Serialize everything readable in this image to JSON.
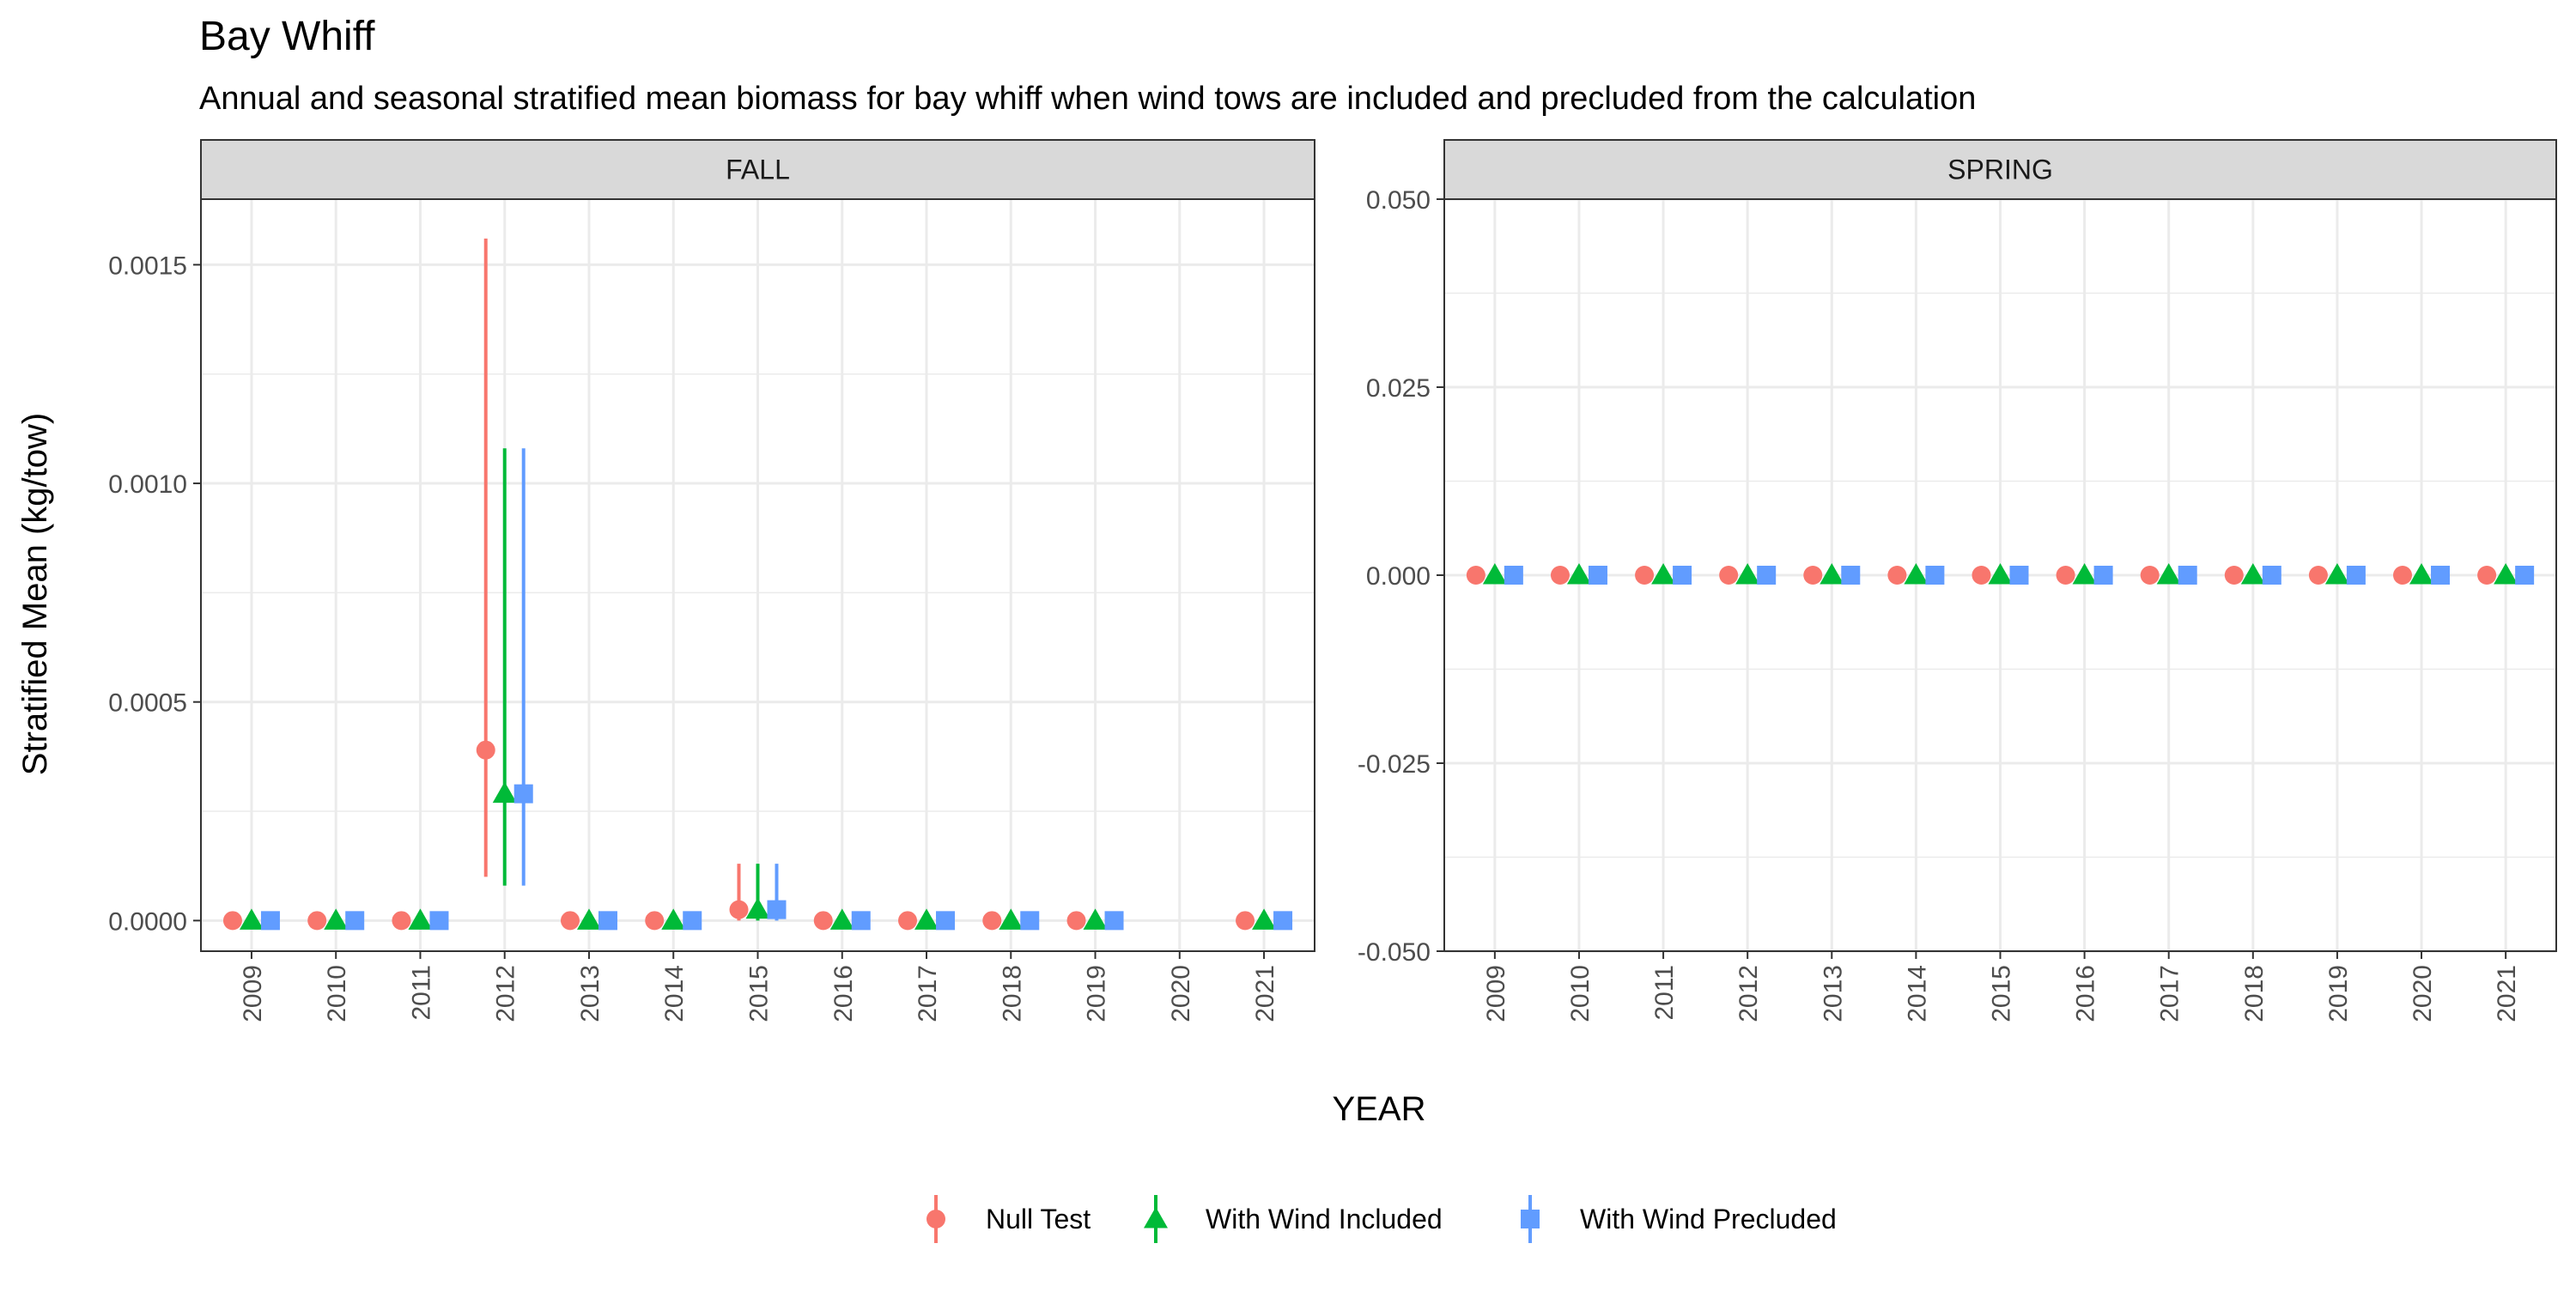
{
  "chart_data": {
    "type": "scatter",
    "title": "Bay Whiff",
    "subtitle": "Annual and seasonal stratified mean biomass for bay whiff when wind tows are included and precluded from the calculation",
    "xlabel": "YEAR",
    "ylabel": "Stratified Mean (kg/tow)",
    "x_categories": [
      "2009",
      "2010",
      "2011",
      "2012",
      "2013",
      "2014",
      "2015",
      "2016",
      "2017",
      "2018",
      "2019",
      "2020",
      "2021"
    ],
    "legend": {
      "position": "bottom"
    },
    "grid": true,
    "series_style": [
      {
        "name": "Null Test",
        "color": "#F8766D",
        "shape": "circle"
      },
      {
        "name": "With Wind Included",
        "color": "#00BA38",
        "shape": "triangle"
      },
      {
        "name": "With Wind Precluded",
        "color": "#619CFF",
        "shape": "square"
      }
    ],
    "panels": [
      {
        "label": "FALL",
        "ylim": [
          -7e-05,
          0.00165
        ],
        "y_ticks": [
          "0.0000",
          "0.0005",
          "0.0010",
          "0.0015"
        ],
        "y_tick_values": [
          0,
          0.0005,
          0.001,
          0.0015
        ],
        "series": [
          {
            "name": "Null Test",
            "points": [
              {
                "x": "2009",
                "y": 0,
                "lo": 0,
                "hi": 0
              },
              {
                "x": "2010",
                "y": 0,
                "lo": 0,
                "hi": 0
              },
              {
                "x": "2011",
                "y": 0,
                "lo": 0,
                "hi": 0
              },
              {
                "x": "2012",
                "y": 0.00039,
                "lo": 0.0001,
                "hi": 0.00156
              },
              {
                "x": "2013",
                "y": 0,
                "lo": 0,
                "hi": 0
              },
              {
                "x": "2014",
                "y": 0,
                "lo": 0,
                "hi": 0
              },
              {
                "x": "2015",
                "y": 2.5e-05,
                "lo": 0.0,
                "hi": 0.00013
              },
              {
                "x": "2016",
                "y": 0,
                "lo": 0,
                "hi": 0
              },
              {
                "x": "2017",
                "y": 0,
                "lo": 0,
                "hi": 0
              },
              {
                "x": "2018",
                "y": 0,
                "lo": 0,
                "hi": 0
              },
              {
                "x": "2019",
                "y": 0,
                "lo": 0,
                "hi": 0
              },
              {
                "x": "2021",
                "y": 0,
                "lo": 0,
                "hi": 0
              }
            ]
          },
          {
            "name": "With Wind Included",
            "points": [
              {
                "x": "2009",
                "y": 0,
                "lo": 0,
                "hi": 0
              },
              {
                "x": "2010",
                "y": 0,
                "lo": 0,
                "hi": 0
              },
              {
                "x": "2011",
                "y": 0,
                "lo": 0,
                "hi": 0
              },
              {
                "x": "2012",
                "y": 0.00029,
                "lo": 8e-05,
                "hi": 0.00108
              },
              {
                "x": "2013",
                "y": 0,
                "lo": 0,
                "hi": 0
              },
              {
                "x": "2014",
                "y": 0,
                "lo": 0,
                "hi": 0
              },
              {
                "x": "2015",
                "y": 2.5e-05,
                "lo": 0.0,
                "hi": 0.00013
              },
              {
                "x": "2016",
                "y": 0,
                "lo": 0,
                "hi": 0
              },
              {
                "x": "2017",
                "y": 0,
                "lo": 0,
                "hi": 0
              },
              {
                "x": "2018",
                "y": 0,
                "lo": 0,
                "hi": 0
              },
              {
                "x": "2019",
                "y": 0,
                "lo": 0,
                "hi": 0
              },
              {
                "x": "2021",
                "y": 0,
                "lo": 0,
                "hi": 0
              }
            ]
          },
          {
            "name": "With Wind Precluded",
            "points": [
              {
                "x": "2009",
                "y": 0,
                "lo": 0,
                "hi": 0
              },
              {
                "x": "2010",
                "y": 0,
                "lo": 0,
                "hi": 0
              },
              {
                "x": "2011",
                "y": 0,
                "lo": 0,
                "hi": 0
              },
              {
                "x": "2012",
                "y": 0.00029,
                "lo": 8e-05,
                "hi": 0.00108
              },
              {
                "x": "2013",
                "y": 0,
                "lo": 0,
                "hi": 0
              },
              {
                "x": "2014",
                "y": 0,
                "lo": 0,
                "hi": 0
              },
              {
                "x": "2015",
                "y": 2.5e-05,
                "lo": 0.0,
                "hi": 0.00013
              },
              {
                "x": "2016",
                "y": 0,
                "lo": 0,
                "hi": 0
              },
              {
                "x": "2017",
                "y": 0,
                "lo": 0,
                "hi": 0
              },
              {
                "x": "2018",
                "y": 0,
                "lo": 0,
                "hi": 0
              },
              {
                "x": "2019",
                "y": 0,
                "lo": 0,
                "hi": 0
              },
              {
                "x": "2021",
                "y": 0,
                "lo": 0,
                "hi": 0
              }
            ]
          }
        ]
      },
      {
        "label": "SPRING",
        "ylim": [
          -0.05,
          0.05
        ],
        "y_ticks": [
          "-0.050",
          "-0.025",
          "0.000",
          "0.025",
          "0.050"
        ],
        "y_tick_values": [
          -0.05,
          -0.025,
          0,
          0.025,
          0.05
        ],
        "series": [
          {
            "name": "Null Test",
            "points": [
              {
                "x": "2009",
                "y": 0
              },
              {
                "x": "2010",
                "y": 0
              },
              {
                "x": "2011",
                "y": 0
              },
              {
                "x": "2012",
                "y": 0
              },
              {
                "x": "2013",
                "y": 0
              },
              {
                "x": "2014",
                "y": 0
              },
              {
                "x": "2015",
                "y": 0
              },
              {
                "x": "2016",
                "y": 0
              },
              {
                "x": "2017",
                "y": 0
              },
              {
                "x": "2018",
                "y": 0
              },
              {
                "x": "2019",
                "y": 0
              },
              {
                "x": "2020",
                "y": 0
              },
              {
                "x": "2021",
                "y": 0
              }
            ]
          },
          {
            "name": "With Wind Included",
            "points": [
              {
                "x": "2009",
                "y": 0
              },
              {
                "x": "2010",
                "y": 0
              },
              {
                "x": "2011",
                "y": 0
              },
              {
                "x": "2012",
                "y": 0
              },
              {
                "x": "2013",
                "y": 0
              },
              {
                "x": "2014",
                "y": 0
              },
              {
                "x": "2015",
                "y": 0
              },
              {
                "x": "2016",
                "y": 0
              },
              {
                "x": "2017",
                "y": 0
              },
              {
                "x": "2018",
                "y": 0
              },
              {
                "x": "2019",
                "y": 0
              },
              {
                "x": "2020",
                "y": 0
              },
              {
                "x": "2021",
                "y": 0
              }
            ]
          },
          {
            "name": "With Wind Precluded",
            "points": [
              {
                "x": "2009",
                "y": 0
              },
              {
                "x": "2010",
                "y": 0
              },
              {
                "x": "2011",
                "y": 0
              },
              {
                "x": "2012",
                "y": 0
              },
              {
                "x": "2013",
                "y": 0
              },
              {
                "x": "2014",
                "y": 0
              },
              {
                "x": "2015",
                "y": 0
              },
              {
                "x": "2016",
                "y": 0
              },
              {
                "x": "2017",
                "y": 0
              },
              {
                "x": "2018",
                "y": 0
              },
              {
                "x": "2019",
                "y": 0
              },
              {
                "x": "2020",
                "y": 0
              },
              {
                "x": "2021",
                "y": 0
              }
            ]
          }
        ]
      }
    ]
  }
}
